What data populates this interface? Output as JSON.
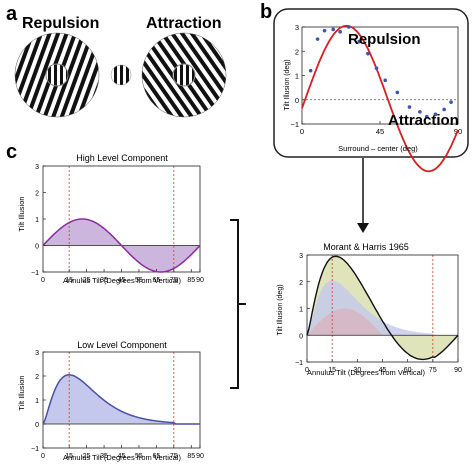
{
  "panel_labels": {
    "a": "a",
    "b": "b",
    "c": "c"
  },
  "panel_a": {
    "repulsion_label": "Repulsion",
    "attraction_label": "Attraction"
  },
  "panel_b": {
    "repulsion_label": "Repulsion",
    "attraction_label": "Attraction",
    "ylabel": "Tilt Illusion (deg)",
    "xlabel": "Surround – center (deg)",
    "yticks": [
      "3",
      "2",
      "1",
      "0",
      "−1"
    ],
    "xticks": [
      "0",
      "45",
      "90"
    ]
  },
  "panel_c": {
    "high": {
      "title": "High Level Component",
      "ylabel": "Tilt Illusion",
      "xlabel": "Annulus Tilt (Degrees from Vertical)",
      "yticks": [
        "3",
        "2",
        "1",
        "0",
        "−1"
      ],
      "xticks": [
        "0",
        "15",
        "25",
        "35",
        "45",
        "55",
        "65",
        "75",
        "85",
        "90"
      ]
    },
    "low": {
      "title": "Low Level Component",
      "ylabel": "Tilt Illusion",
      "xlabel": "Annulus Tilt (Degrees from Vertical)",
      "yticks": [
        "3",
        "2",
        "1",
        "0",
        "−1"
      ],
      "xticks": [
        "0",
        "15",
        "25",
        "35",
        "45",
        "55",
        "65",
        "75",
        "85",
        "90"
      ]
    },
    "combined": {
      "title": "Morant & Harris 1965",
      "ylabel": "Tilt Illusion (deg)",
      "xlabel": "Annulus Tilt (Degrees from Vertical)",
      "yticks": [
        "3",
        "2",
        "1",
        "0",
        "−1"
      ],
      "xticks": [
        "0",
        "15",
        "30",
        "45",
        "60",
        "75",
        "90"
      ]
    }
  },
  "colors": {
    "purple": "#8e2a9e",
    "purple_fill": "#cdb6de",
    "blue": "#4b4fa8",
    "blue_fill": "#c4c8ec",
    "red": "#d81e1e",
    "dots": "#3a55b5",
    "guide": "#d03a2a",
    "green_fill": "#dde3b6",
    "pink_fill": "#dcb0bb"
  }
}
